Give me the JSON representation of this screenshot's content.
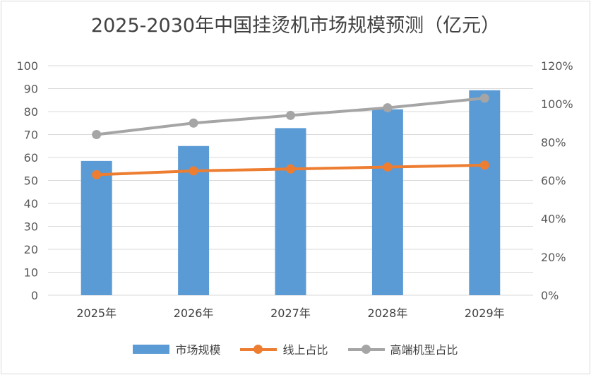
{
  "chart_data": {
    "type": "bar",
    "title": "2025-2030年中国挂烫机市场规模预测（亿元）",
    "categories": [
      "2025年",
      "2026年",
      "2027年",
      "2028年",
      "2029年"
    ],
    "series": [
      {
        "name": "市场规模",
        "type": "bar",
        "axis": "left",
        "values": [
          58.5,
          65,
          72.8,
          81,
          89.3
        ],
        "color": "#5B9BD5"
      },
      {
        "name": "线上占比",
        "type": "line",
        "axis": "right",
        "values": [
          0.63,
          0.65,
          0.66,
          0.67,
          0.68
        ],
        "color": "#ED7D31"
      },
      {
        "name": "高端机型占比",
        "type": "line",
        "axis": "right",
        "values": [
          0.84,
          0.9,
          0.94,
          0.98,
          1.03
        ],
        "color": "#A5A5A5"
      }
    ],
    "y_left": {
      "min": 0,
      "max": 100,
      "ticks": [
        "0",
        "10",
        "20",
        "30",
        "40",
        "50",
        "60",
        "70",
        "80",
        "90",
        "100"
      ]
    },
    "y_right": {
      "min": 0,
      "max": 1.2,
      "ticks": [
        "0%",
        "20%",
        "40%",
        "60%",
        "80%",
        "100%",
        "120%"
      ]
    },
    "grid": true,
    "legend_position": "bottom"
  }
}
